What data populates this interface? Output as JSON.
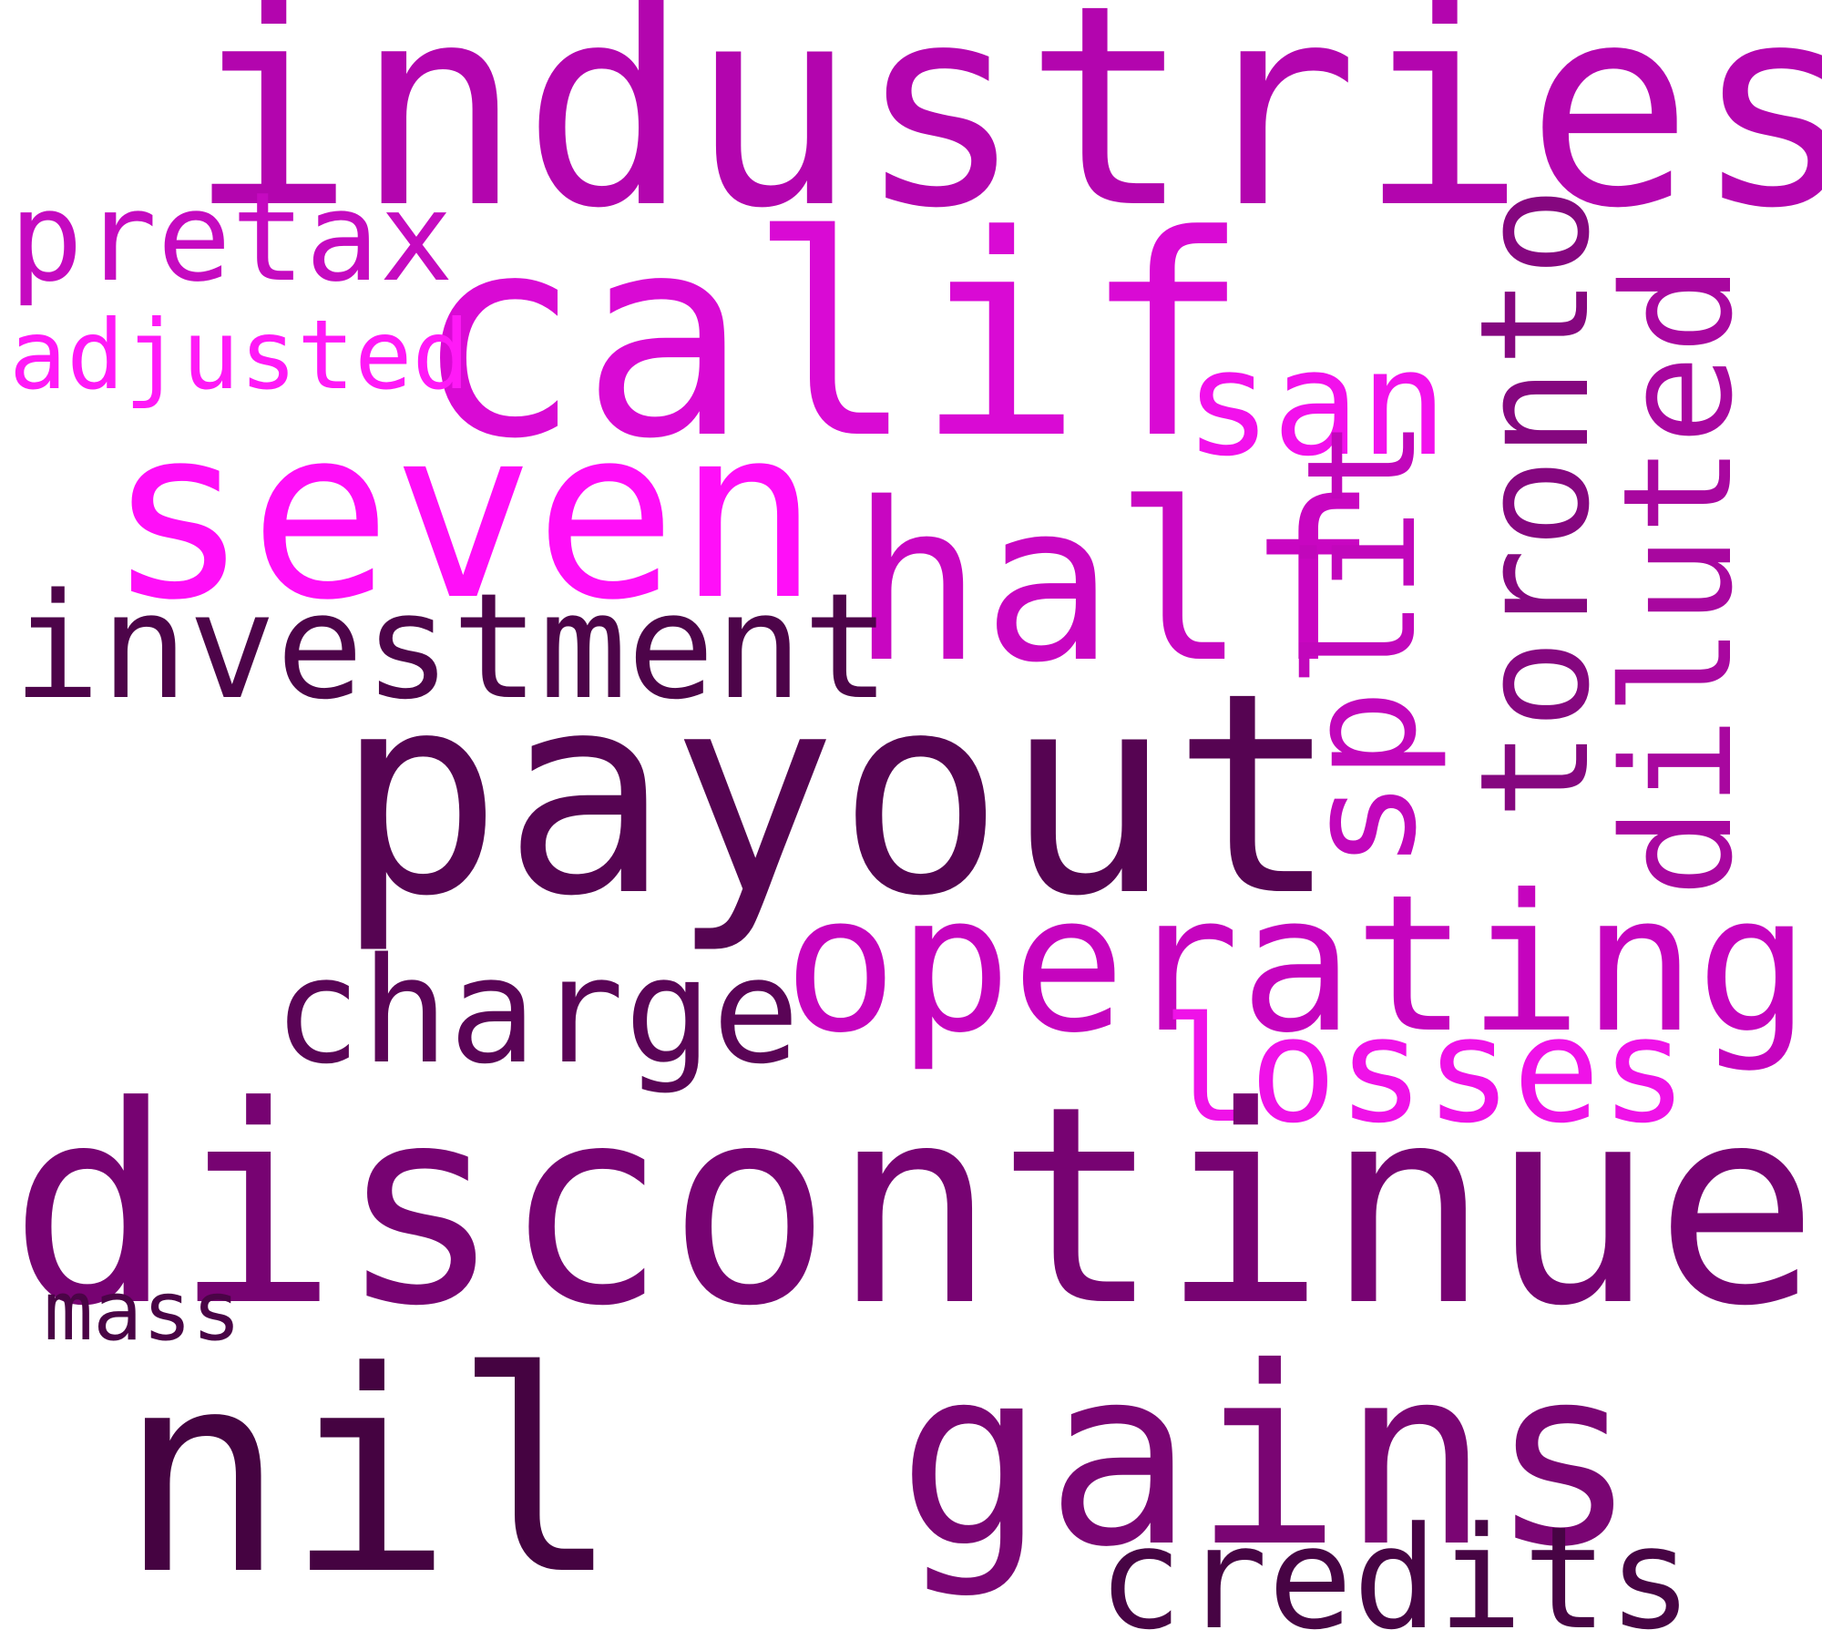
{
  "words": {
    "industries": {
      "text": "industries",
      "color": "#b305ae"
    },
    "calif": {
      "text": "calif",
      "color": "#d90ad4"
    },
    "seven": {
      "text": "seven",
      "color": "#ff0ff8"
    },
    "half": {
      "text": "half",
      "color": "#c806c1"
    },
    "san": {
      "text": "san",
      "color": "#f211ec"
    },
    "pretax": {
      "text": "pretax",
      "color": "#c50ac0"
    },
    "adjusted": {
      "text": "adjusted",
      "color": "#ff1af7"
    },
    "toronto": {
      "text": "toronto",
      "color": "#85077f"
    },
    "split": {
      "text": "split",
      "color": "#c107bb"
    },
    "diluted": {
      "text": "diluted",
      "color": "#a8079f"
    },
    "investment": {
      "text": "investment",
      "color": "#4d0449"
    },
    "payout": {
      "text": "payout",
      "color": "#560452"
    },
    "operating": {
      "text": "operating",
      "color": "#c504be"
    },
    "charge": {
      "text": "charge",
      "color": "#5a0456"
    },
    "losses": {
      "text": "losses",
      "color": "#ef12e8"
    },
    "discontinued": {
      "text": "discontinued",
      "color": "#770372"
    },
    "mass": {
      "text": "mass",
      "color": "#4a0446"
    },
    "nil": {
      "text": "nil",
      "color": "#450341"
    },
    "gains": {
      "text": "gains",
      "color": "#7a0573"
    },
    "credits": {
      "text": "credits",
      "color": "#470444"
    }
  }
}
